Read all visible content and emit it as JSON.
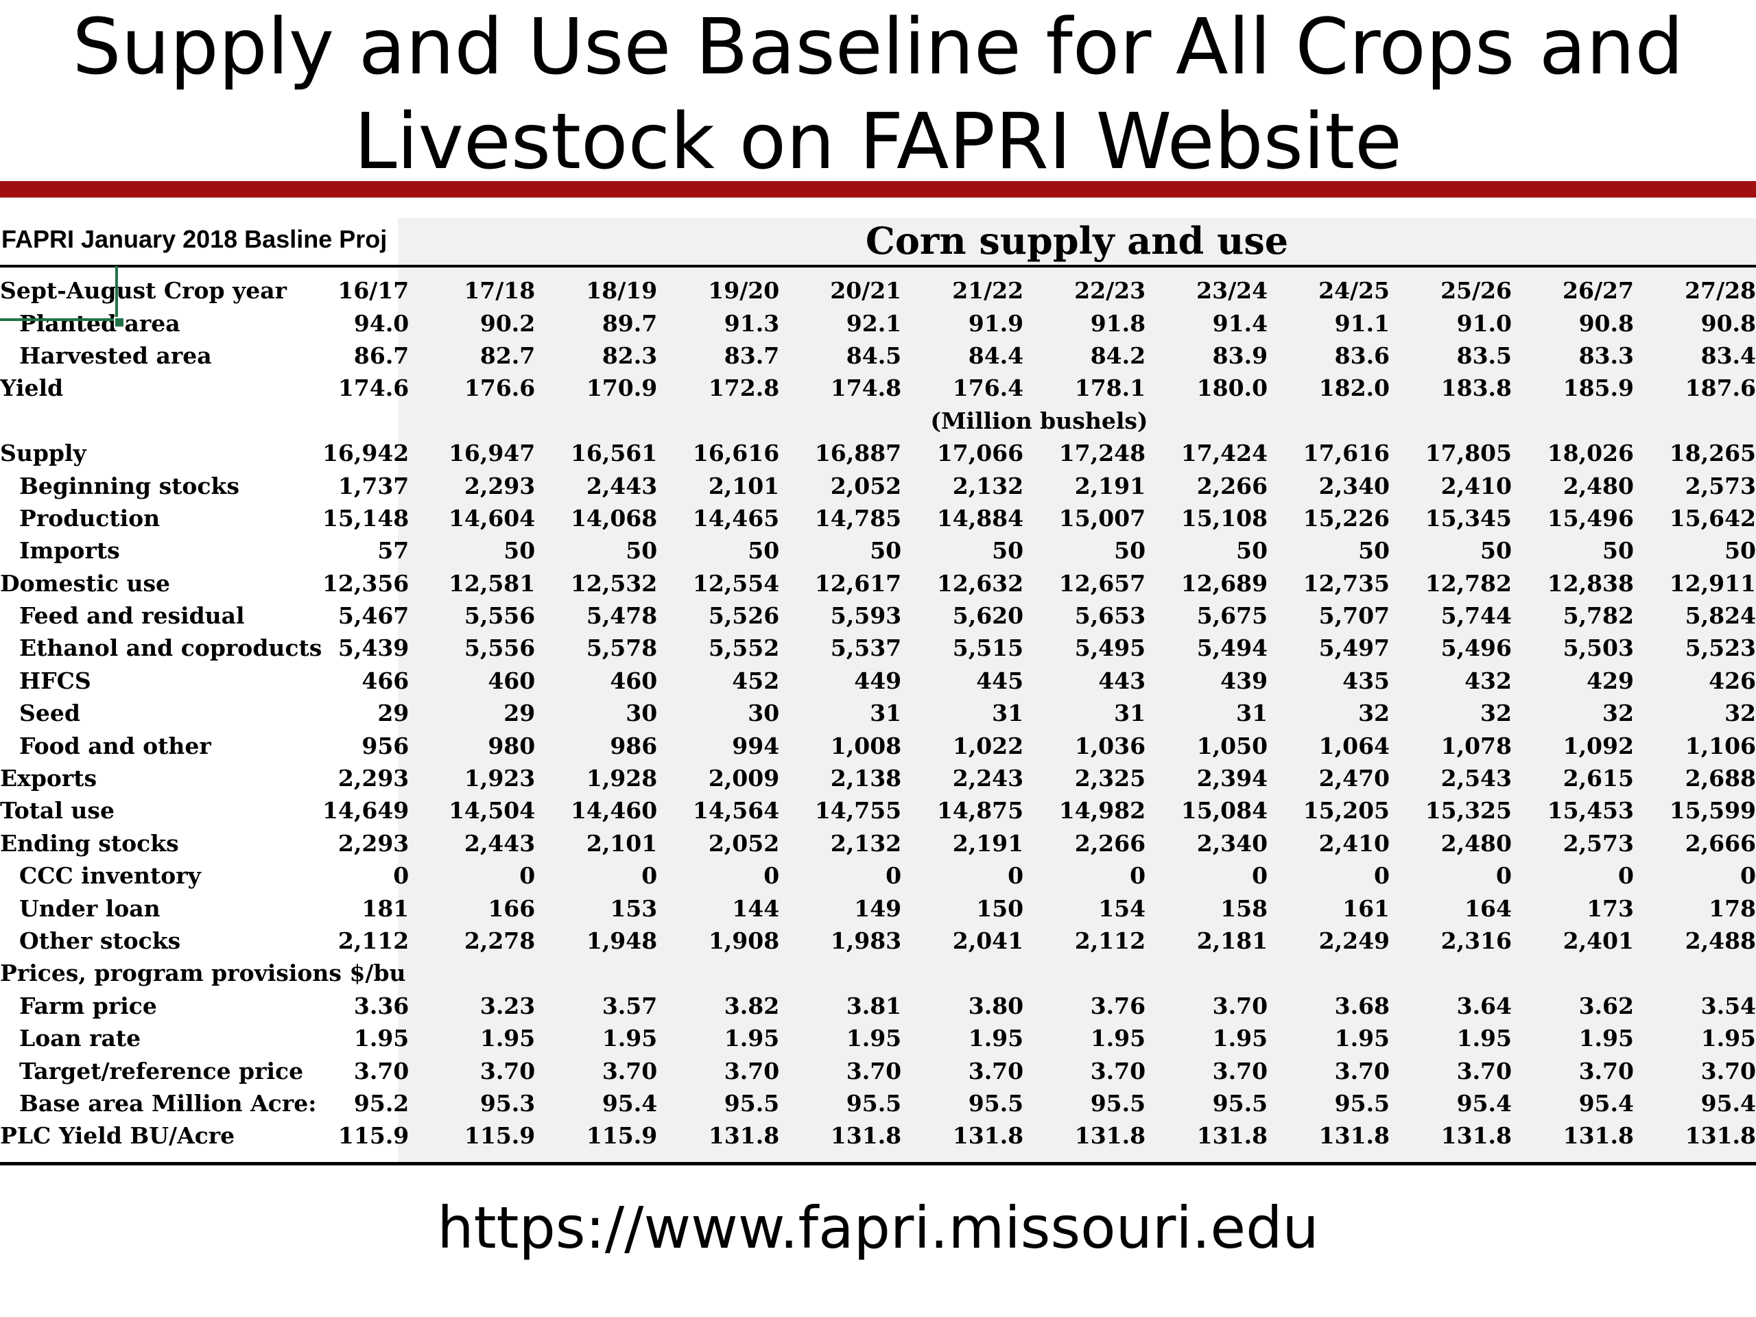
{
  "slide": {
    "title_line1": "Supply and Use Baseline for All Crops and",
    "title_line2": "Livestock on FAPRI Website",
    "url": "https://www.fapri.missouri.edu",
    "rule_color": "#a10f10"
  },
  "sheet": {
    "header": "FAPRI January 2018 Basline Proj",
    "table_title": "Corn supply and use",
    "selection_color": "#217346"
  },
  "table": {
    "header_label": "Sept-August Crop year",
    "years": [
      "16/17",
      "17/18",
      "18/19",
      "19/20",
      "20/21",
      "21/22",
      "22/23",
      "23/24",
      "24/25",
      "25/26",
      "26/27",
      "27/28"
    ],
    "units_note": "(Million bushels)",
    "rows": [
      {
        "label": "Planted area",
        "indent": true,
        "values": [
          "94.0",
          "90.2",
          "89.7",
          "91.3",
          "92.1",
          "91.9",
          "91.8",
          "91.4",
          "91.1",
          "91.0",
          "90.8",
          "90.8"
        ]
      },
      {
        "label": "Harvested area",
        "indent": true,
        "values": [
          "86.7",
          "82.7",
          "82.3",
          "83.7",
          "84.5",
          "84.4",
          "84.2",
          "83.9",
          "83.6",
          "83.5",
          "83.3",
          "83.4"
        ]
      },
      {
        "label": "Yield",
        "indent": false,
        "values": [
          "174.6",
          "176.6",
          "170.9",
          "172.8",
          "174.8",
          "176.4",
          "178.1",
          "180.0",
          "182.0",
          "183.8",
          "185.9",
          "187.6"
        ]
      },
      {
        "note": true
      },
      {
        "label": "Supply",
        "indent": false,
        "values": [
          "16,942",
          "16,947",
          "16,561",
          "16,616",
          "16,887",
          "17,066",
          "17,248",
          "17,424",
          "17,616",
          "17,805",
          "18,026",
          "18,265"
        ]
      },
      {
        "label": "Beginning stocks",
        "indent": true,
        "values": [
          "1,737",
          "2,293",
          "2,443",
          "2,101",
          "2,052",
          "2,132",
          "2,191",
          "2,266",
          "2,340",
          "2,410",
          "2,480",
          "2,573"
        ]
      },
      {
        "label": "Production",
        "indent": true,
        "values": [
          "15,148",
          "14,604",
          "14,068",
          "14,465",
          "14,785",
          "14,884",
          "15,007",
          "15,108",
          "15,226",
          "15,345",
          "15,496",
          "15,642"
        ]
      },
      {
        "label": "Imports",
        "indent": true,
        "values": [
          "57",
          "50",
          "50",
          "50",
          "50",
          "50",
          "50",
          "50",
          "50",
          "50",
          "50",
          "50"
        ]
      },
      {
        "label": "Domestic use",
        "indent": false,
        "values": [
          "12,356",
          "12,581",
          "12,532",
          "12,554",
          "12,617",
          "12,632",
          "12,657",
          "12,689",
          "12,735",
          "12,782",
          "12,838",
          "12,911"
        ]
      },
      {
        "label": "Feed and residual",
        "indent": true,
        "values": [
          "5,467",
          "5,556",
          "5,478",
          "5,526",
          "5,593",
          "5,620",
          "5,653",
          "5,675",
          "5,707",
          "5,744",
          "5,782",
          "5,824"
        ]
      },
      {
        "label": "Ethanol and coproducts",
        "indent": true,
        "values": [
          "5,439",
          "5,556",
          "5,578",
          "5,552",
          "5,537",
          "5,515",
          "5,495",
          "5,494",
          "5,497",
          "5,496",
          "5,503",
          "5,523"
        ]
      },
      {
        "label": "HFCS",
        "indent": true,
        "values": [
          "466",
          "460",
          "460",
          "452",
          "449",
          "445",
          "443",
          "439",
          "435",
          "432",
          "429",
          "426"
        ]
      },
      {
        "label": "Seed",
        "indent": true,
        "values": [
          "29",
          "29",
          "30",
          "30",
          "31",
          "31",
          "31",
          "31",
          "32",
          "32",
          "32",
          "32"
        ]
      },
      {
        "label": "Food and other",
        "indent": true,
        "values": [
          "956",
          "980",
          "986",
          "994",
          "1,008",
          "1,022",
          "1,036",
          "1,050",
          "1,064",
          "1,078",
          "1,092",
          "1,106"
        ]
      },
      {
        "label": "Exports",
        "indent": false,
        "values": [
          "2,293",
          "1,923",
          "1,928",
          "2,009",
          "2,138",
          "2,243",
          "2,325",
          "2,394",
          "2,470",
          "2,543",
          "2,615",
          "2,688"
        ]
      },
      {
        "label": "Total use",
        "indent": false,
        "values": [
          "14,649",
          "14,504",
          "14,460",
          "14,564",
          "14,755",
          "14,875",
          "14,982",
          "15,084",
          "15,205",
          "15,325",
          "15,453",
          "15,599"
        ]
      },
      {
        "label": "Ending stocks",
        "indent": false,
        "values": [
          "2,293",
          "2,443",
          "2,101",
          "2,052",
          "2,132",
          "2,191",
          "2,266",
          "2,340",
          "2,410",
          "2,480",
          "2,573",
          "2,666"
        ]
      },
      {
        "label": "CCC inventory",
        "indent": true,
        "values": [
          "0",
          "0",
          "0",
          "0",
          "0",
          "0",
          "0",
          "0",
          "0",
          "0",
          "0",
          "0"
        ]
      },
      {
        "label": "Under loan",
        "indent": true,
        "values": [
          "181",
          "166",
          "153",
          "144",
          "149",
          "150",
          "154",
          "158",
          "161",
          "164",
          "173",
          "178"
        ]
      },
      {
        "label": "Other stocks",
        "indent": true,
        "values": [
          "2,112",
          "2,278",
          "1,948",
          "1,908",
          "1,983",
          "2,041",
          "2,112",
          "2,181",
          "2,249",
          "2,316",
          "2,401",
          "2,488"
        ]
      },
      {
        "label": "Prices, program provisions $/bu",
        "indent": false,
        "section": true,
        "values": []
      },
      {
        "label": "Farm price",
        "indent": true,
        "values": [
          "3.36",
          "3.23",
          "3.57",
          "3.82",
          "3.81",
          "3.80",
          "3.76",
          "3.70",
          "3.68",
          "3.64",
          "3.62",
          "3.54"
        ]
      },
      {
        "label": "Loan rate",
        "indent": true,
        "values": [
          "1.95",
          "1.95",
          "1.95",
          "1.95",
          "1.95",
          "1.95",
          "1.95",
          "1.95",
          "1.95",
          "1.95",
          "1.95",
          "1.95"
        ]
      },
      {
        "label": "Target/reference price",
        "indent": true,
        "values": [
          "3.70",
          "3.70",
          "3.70",
          "3.70",
          "3.70",
          "3.70",
          "3.70",
          "3.70",
          "3.70",
          "3.70",
          "3.70",
          "3.70"
        ]
      },
      {
        "label": "Base area Million Acres",
        "display": "Base area Million Acre:",
        "indent": true,
        "values": [
          "95.2",
          "95.3",
          "95.4",
          "95.5",
          "95.5",
          "95.5",
          "95.5",
          "95.5",
          "95.5",
          "95.4",
          "95.4",
          "95.4"
        ]
      },
      {
        "label": "PLC Yield BU/Acre",
        "indent": false,
        "values": [
          "115.9",
          "115.9",
          "115.9",
          "131.8",
          "131.8",
          "131.8",
          "131.8",
          "131.8",
          "131.8",
          "131.8",
          "131.8",
          "131.8"
        ]
      }
    ]
  }
}
